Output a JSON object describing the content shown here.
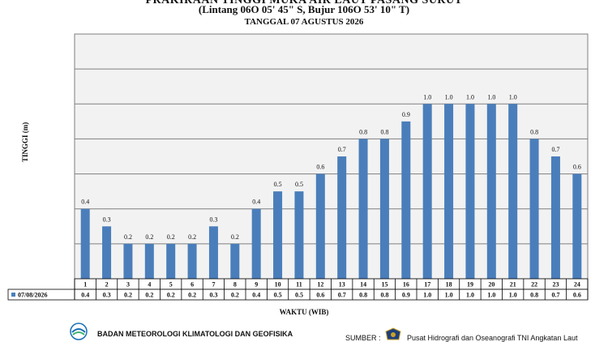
{
  "header": {
    "title": "PRAKIRAAN TINGGI MUKA AIR LAUT PASANG SURUT",
    "subtitle": "(Lintang 06O 05' 45\" S, Bujur 106O 53' 10\" T)",
    "date_line": "TANGGAL 07 AGUSTUS 2026"
  },
  "footer": {
    "org": "BADAN METEOROLOGI KLIMATOLOGI DAN GEOFISIKA",
    "source_label": "SUMBER :",
    "source": "Pusat Hidrografi dan Oseanografi TNI Angkatan Laut"
  },
  "chart_data": {
    "type": "bar",
    "xlabel": "WAKTU (WIB)",
    "ylabel": "TINGGI (m)",
    "ylim": [
      0,
      1.4
    ],
    "grid": true,
    "bar_color": "#4a7ebb",
    "categories": [
      "1",
      "2",
      "3",
      "4",
      "5",
      "6",
      "7",
      "8",
      "9",
      "10",
      "11",
      "12",
      "13",
      "14",
      "15",
      "16",
      "17",
      "18",
      "19",
      "20",
      "21",
      "22",
      "23",
      "24"
    ],
    "series": [
      {
        "name": "07/08/2026",
        "values": [
          0.4,
          0.3,
          0.2,
          0.2,
          0.2,
          0.2,
          0.3,
          0.2,
          0.4,
          0.5,
          0.5,
          0.6,
          0.7,
          0.8,
          0.8,
          0.9,
          1.0,
          1.0,
          1.0,
          1.0,
          1.0,
          0.8,
          0.7,
          0.6
        ],
        "labels": [
          "0.4",
          "0.3",
          "0.2",
          "0.2",
          "0.2",
          "0.2",
          "0.3",
          "0.2",
          "0.4",
          "0.5",
          "0.5",
          "0.6",
          "0.7",
          "0.8",
          "0.8",
          "0.9",
          "1.0",
          "1.0",
          "1.0",
          "1.0",
          "1.0",
          "0.8",
          "0.7",
          "0.6"
        ]
      }
    ]
  }
}
